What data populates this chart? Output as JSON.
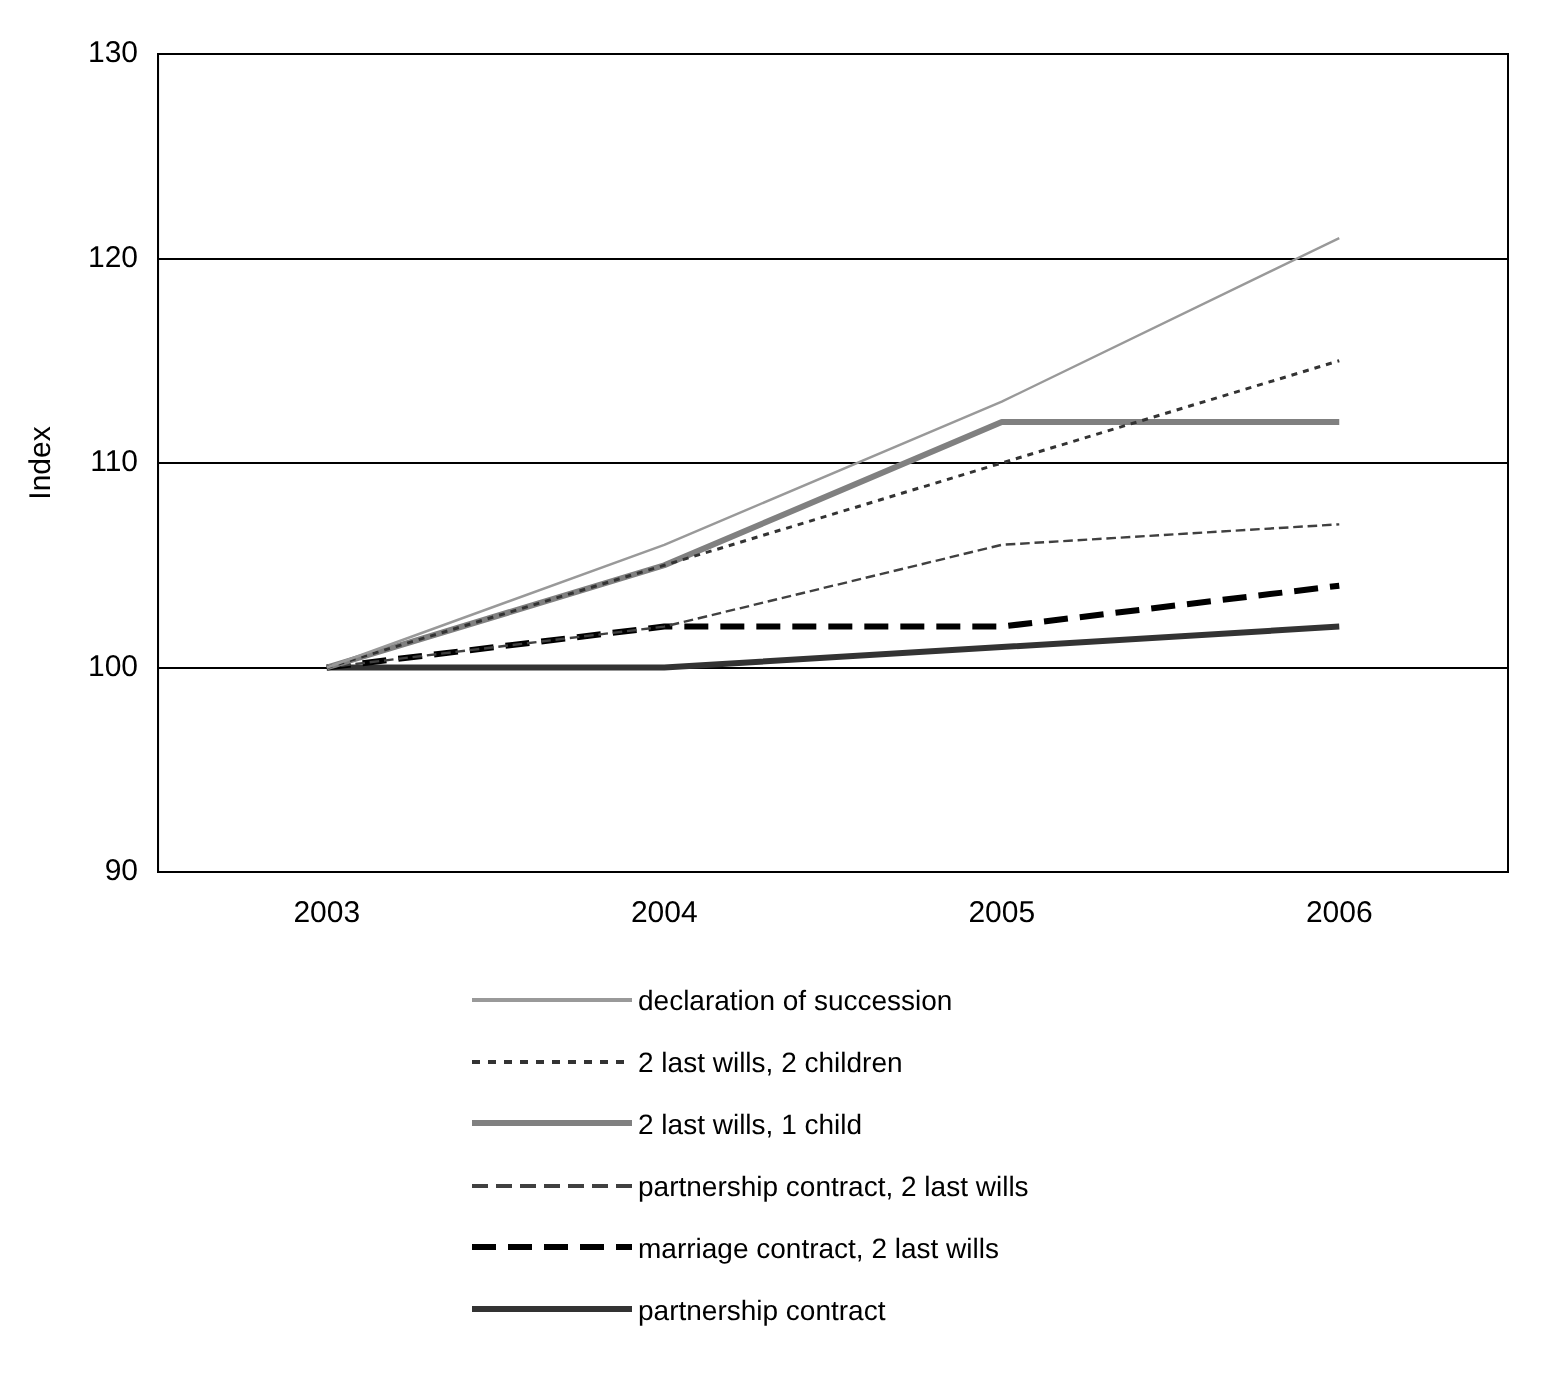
{
  "chart_data": {
    "type": "line",
    "ylabel": "Index",
    "categories": [
      "2003",
      "2004",
      "2005",
      "2006"
    ],
    "ylim": [
      90,
      130
    ],
    "yticks": [
      90,
      100,
      110,
      120,
      130
    ],
    "grid": "y",
    "legend": "bottom",
    "marker": "none",
    "series": [
      {
        "name": "declaration of succession",
        "color": "#999999",
        "line_style": "solid",
        "values": [
          100,
          106,
          113,
          121
        ]
      },
      {
        "name": "2 last wills, 2 children",
        "color": "#333333",
        "line_style": "dotted",
        "values": [
          100,
          105,
          110,
          115
        ]
      },
      {
        "name": "2 last wills, 1 child",
        "color": "#808080",
        "line_style": "solid",
        "values": [
          100,
          105,
          112,
          112
        ]
      },
      {
        "name": "partnership contract, 2 last wills",
        "color": "#404040",
        "line_style": "dashed",
        "values": [
          100,
          102,
          106,
          107
        ]
      },
      {
        "name": "marriage contract, 2 last wills",
        "color": "#000000",
        "line_style": "dashed",
        "values": [
          100,
          102,
          102,
          104
        ]
      },
      {
        "name": "partnership contract",
        "color": "#333333",
        "line_style": "solid",
        "values": [
          100,
          100,
          101,
          102
        ]
      }
    ]
  }
}
